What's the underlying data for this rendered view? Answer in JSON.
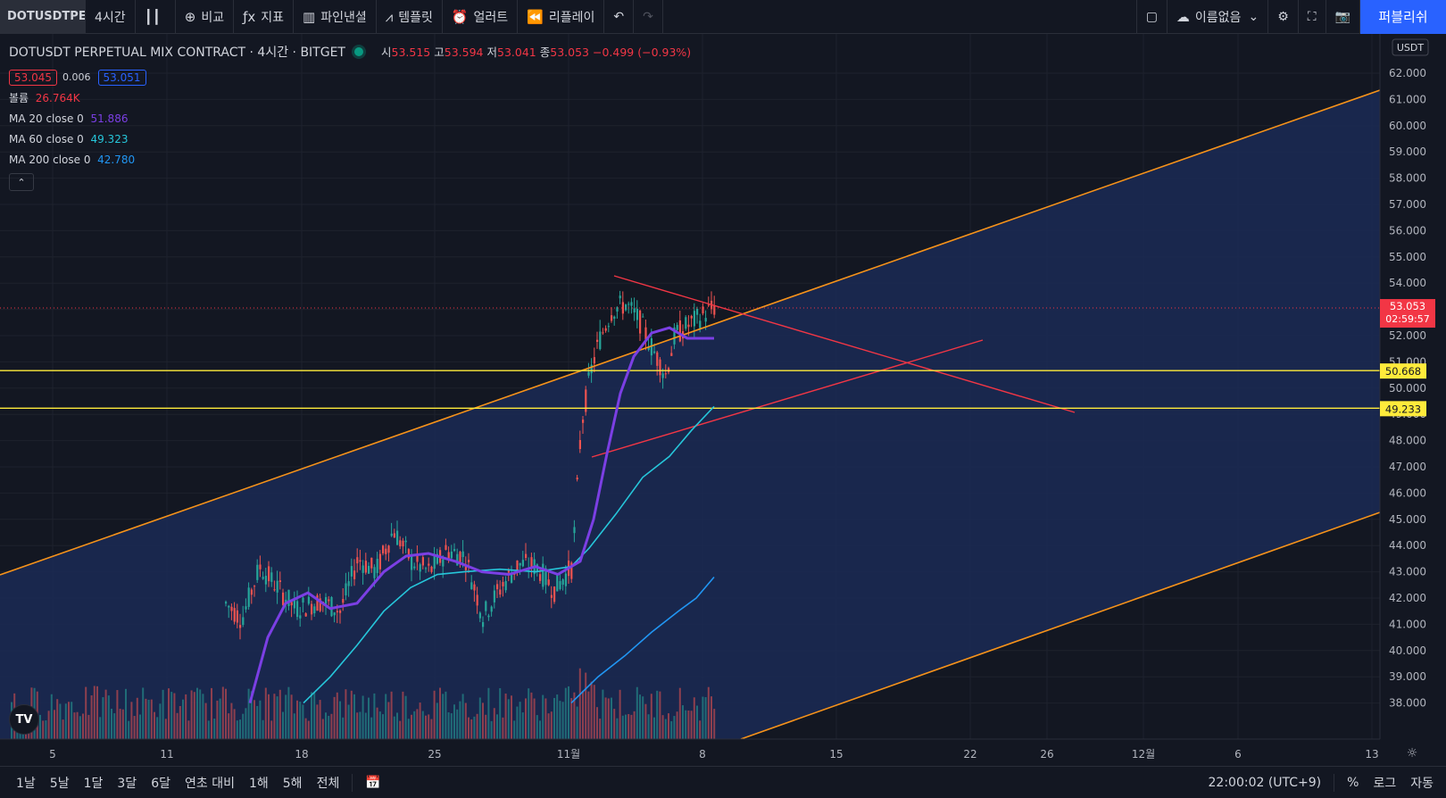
{
  "toolbar": {
    "symbol": "DOTUSDTPERP",
    "interval": "4시간",
    "compare": "비교",
    "indicators": "지표",
    "pine": "파인낸셜",
    "templates": "템플릿",
    "alert": "얼러트",
    "replay": "리플레이",
    "layout_name": "이름없음",
    "publish": "퍼블리쉬"
  },
  "legend": {
    "title": "DOTUSDT PERPETUAL MIX CONTRACT · 4시간 · BITGET",
    "open_label": "시",
    "open": "53.515",
    "high_label": "고",
    "high": "53.594",
    "low_label": "저",
    "low": "53.041",
    "close_label": "종",
    "close": "53.053",
    "change": "−0.499 (−0.93%)",
    "bid": "53.045",
    "spread": "0.006",
    "ask": "53.051",
    "volume_label": "볼륨",
    "volume": "26.764K",
    "ma20_label": "MA 20 close 0",
    "ma20": "51.886",
    "ma60_label": "MA 60 close 0",
    "ma60": "49.323",
    "ma200_label": "MA 200 close 0",
    "ma200": "42.780"
  },
  "colors": {
    "up": "#26a69a",
    "down": "#ef5350",
    "ma20": "#7b3fe4",
    "ma60": "#26c6da",
    "ma200": "#2196f3",
    "channel": "#f7931a",
    "triangle": "#f23645",
    "hline": "#ffeb3b",
    "fill": "#1b2a55"
  },
  "axis": {
    "currency": "USDT",
    "price_ticks": [
      "62.000",
      "61.000",
      "60.000",
      "59.000",
      "58.000",
      "57.000",
      "56.000",
      "55.000",
      "54.000",
      "53.000",
      "52.000",
      "51.000",
      "50.000",
      "49.000",
      "48.000",
      "47.000",
      "46.000",
      "45.000",
      "44.000",
      "43.000",
      "42.000",
      "41.000",
      "40.000",
      "39.000",
      "38.000"
    ],
    "price_label_last": "53.053",
    "countdown": "02:59:57",
    "hline_label_1": "50.668",
    "hline_label_2": "49.233",
    "time_ticks": [
      "5",
      "11",
      "18",
      "25",
      "11월",
      "8",
      "15",
      "22",
      "26",
      "12월",
      "6",
      "13"
    ]
  },
  "bottom": {
    "ranges": [
      "1날",
      "5날",
      "1달",
      "3달",
      "6달",
      "연초 대비",
      "1해",
      "5해",
      "전체"
    ],
    "clock": "22:00:02 (UTC+9)",
    "percent": "%",
    "log": "로그",
    "auto": "자동"
  }
}
